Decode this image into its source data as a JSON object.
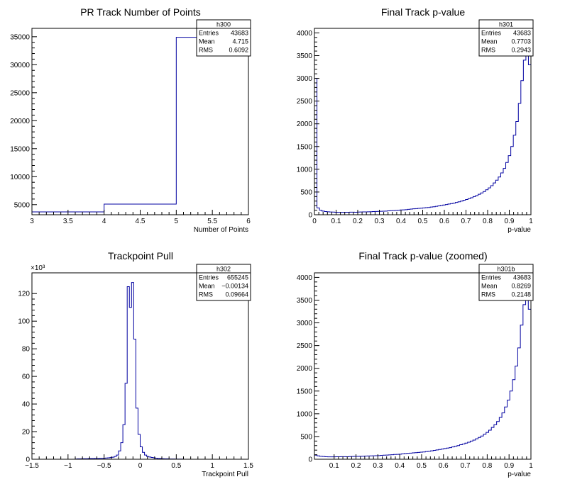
{
  "colors": {
    "hist_line": "#0000a0",
    "axis": "#000000",
    "background": "#ffffff"
  },
  "chart_data": [
    {
      "type": "line",
      "name": "h300",
      "title": "PR Track Number of Points",
      "xlabel": "Number of Points",
      "ylabel": "",
      "xlim": [
        3,
        6
      ],
      "ylim": [
        3200,
        36500
      ],
      "xticks": [
        3,
        3.5,
        4,
        4.5,
        5,
        5.5,
        6
      ],
      "xtick_labels": [
        "3",
        "3.5",
        "4",
        "4.5",
        "5",
        "5.5",
        "6"
      ],
      "yticks": [
        5000,
        10000,
        15000,
        20000,
        25000,
        30000,
        35000
      ],
      "ytick_labels": [
        "5000",
        "10000",
        "15000",
        "20000",
        "25000",
        "30000",
        "35000"
      ],
      "y_exponent": "",
      "bin_edges": [
        3,
        4,
        5,
        6
      ],
      "values": [
        3700,
        5100,
        34900
      ],
      "stats": [
        {
          "label": "Entries",
          "value": "43683"
        },
        {
          "label": "Mean",
          "value": "4.715"
        },
        {
          "label": "RMS",
          "value": "0.6092"
        }
      ]
    },
    {
      "type": "line",
      "name": "h301",
      "title": "Final Track p-value",
      "xlabel": "p-value",
      "ylabel": "",
      "xlim": [
        0,
        1
      ],
      "ylim": [
        0,
        4100
      ],
      "xticks": [
        0,
        0.1,
        0.2,
        0.3,
        0.4,
        0.5,
        0.6,
        0.7,
        0.8,
        0.9,
        1
      ],
      "xtick_labels": [
        "0",
        "0.1",
        "0.2",
        "0.3",
        "0.4",
        "0.5",
        "0.6",
        "0.7",
        "0.8",
        "0.9",
        "1"
      ],
      "yticks": [
        0,
        500,
        1000,
        1500,
        2000,
        2500,
        3000,
        3500,
        4000
      ],
      "ytick_labels": [
        "0",
        "500",
        "1000",
        "1500",
        "2000",
        "2500",
        "3000",
        "3500",
        "4000"
      ],
      "y_exponent": "",
      "bin_edges_range": [
        0,
        1
      ],
      "values": [
        3000,
        150,
        100,
        80,
        70,
        65,
        60,
        58,
        55,
        52,
        52,
        53,
        55,
        54,
        56,
        57,
        55,
        58,
        60,
        62,
        63,
        65,
        67,
        70,
        72,
        74,
        76,
        78,
        80,
        85,
        90,
        92,
        95,
        100,
        105,
        108,
        112,
        118,
        125,
        130,
        135,
        140,
        145,
        150,
        155,
        160,
        170,
        175,
        185,
        195,
        205,
        215,
        225,
        235,
        245,
        255,
        270,
        285,
        300,
        320,
        335,
        355,
        375,
        400,
        420,
        450,
        480,
        510,
        550,
        590,
        640,
        700,
        760,
        830,
        920,
        1020,
        1150,
        1300,
        1500,
        1750,
        2050,
        2450,
        2950,
        3400,
        3500,
        3300
      ],
      "stats": [
        {
          "label": "Entries",
          "value": "43683"
        },
        {
          "label": "Mean",
          "value": "0.7703"
        },
        {
          "label": "RMS",
          "value": "0.2943"
        }
      ]
    },
    {
      "type": "line",
      "name": "h302",
      "title": "Trackpoint Pull",
      "xlabel": "Trackpoint Pull",
      "ylabel": "",
      "xlim": [
        -1.5,
        1.5
      ],
      "ylim": [
        0,
        135
      ],
      "xticks": [
        -1.5,
        -1,
        -0.5,
        0,
        0.5,
        1,
        1.5
      ],
      "xtick_labels": [
        "−1.5",
        "−1",
        "−0.5",
        "0",
        "0.5",
        "1",
        "1.5"
      ],
      "yticks": [
        0,
        20,
        40,
        60,
        80,
        100,
        120
      ],
      "ytick_labels": [
        "0",
        "20",
        "40",
        "60",
        "80",
        "100",
        "120"
      ],
      "y_exponent": "×10³",
      "bin_edges_range": [
        -1.5,
        1.5
      ],
      "values": [
        0,
        0,
        0,
        0,
        0,
        0,
        0,
        0,
        0,
        0,
        0,
        0,
        0,
        0,
        0,
        0,
        0,
        0,
        0,
        0,
        0.2,
        0.3,
        0.3,
        0.4,
        0.4,
        0.4,
        0.5,
        0.5,
        0.5,
        0.6,
        0.6,
        0.7,
        0.7,
        0.8,
        0.9,
        1.0,
        1.2,
        1.5,
        2,
        3,
        6,
        12,
        25,
        55,
        125,
        110,
        128,
        87,
        37,
        18,
        9,
        5,
        3,
        2,
        1.6,
        1.3,
        1.0,
        0.8,
        0.6,
        0.5,
        0.4,
        0.3,
        0.3,
        0.2,
        0.2,
        0.2,
        0.1,
        0.1,
        0.1,
        0.1,
        0,
        0,
        0,
        0,
        0,
        0,
        0,
        0,
        0,
        0,
        0,
        0,
        0,
        0,
        0,
        0,
        0,
        0,
        0,
        0,
        0,
        0,
        0,
        0,
        0,
        0,
        0,
        0,
        0,
        0
      ],
      "stats": [
        {
          "label": "Entries",
          "value": "655245"
        },
        {
          "label": "Mean",
          "value": "−0.00134"
        },
        {
          "label": "RMS",
          "value": "0.09664"
        }
      ]
    },
    {
      "type": "line",
      "name": "h301b",
      "title": "Final Track p-value (zoomed)",
      "xlabel": "p-value",
      "ylabel": "",
      "xlim": [
        0.01,
        1
      ],
      "ylim": [
        0,
        4100
      ],
      "xticks": [
        0.1,
        0.2,
        0.3,
        0.4,
        0.5,
        0.6,
        0.7,
        0.8,
        0.9,
        1
      ],
      "xtick_labels": [
        "0.1",
        "0.2",
        "0.3",
        "0.4",
        "0.5",
        "0.6",
        "0.7",
        "0.8",
        "0.9",
        "1"
      ],
      "yticks": [
        0,
        500,
        1000,
        1500,
        2000,
        2500,
        3000,
        3500,
        4000
      ],
      "ytick_labels": [
        "0",
        "500",
        "1000",
        "1500",
        "2000",
        "2500",
        "3000",
        "3500",
        "4000"
      ],
      "y_exponent": "",
      "bin_edges_range": [
        0.01,
        1
      ],
      "values": [
        90,
        75,
        65,
        60,
        55,
        53,
        52,
        53,
        55,
        54,
        56,
        57,
        55,
        58,
        60,
        62,
        63,
        65,
        67,
        70,
        72,
        74,
        76,
        78,
        80,
        85,
        90,
        92,
        95,
        100,
        105,
        108,
        112,
        118,
        125,
        130,
        135,
        140,
        145,
        150,
        155,
        160,
        170,
        175,
        185,
        195,
        205,
        215,
        225,
        235,
        245,
        255,
        270,
        285,
        300,
        320,
        335,
        355,
        375,
        400,
        420,
        450,
        480,
        510,
        550,
        590,
        640,
        700,
        760,
        830,
        920,
        1020,
        1150,
        1300,
        1500,
        1750,
        2050,
        2450,
        2950,
        3400,
        3500,
        3300
      ],
      "stats": [
        {
          "label": "Entries",
          "value": "43683"
        },
        {
          "label": "Mean",
          "value": "0.8269"
        },
        {
          "label": "RMS",
          "value": "0.2148"
        }
      ]
    }
  ]
}
